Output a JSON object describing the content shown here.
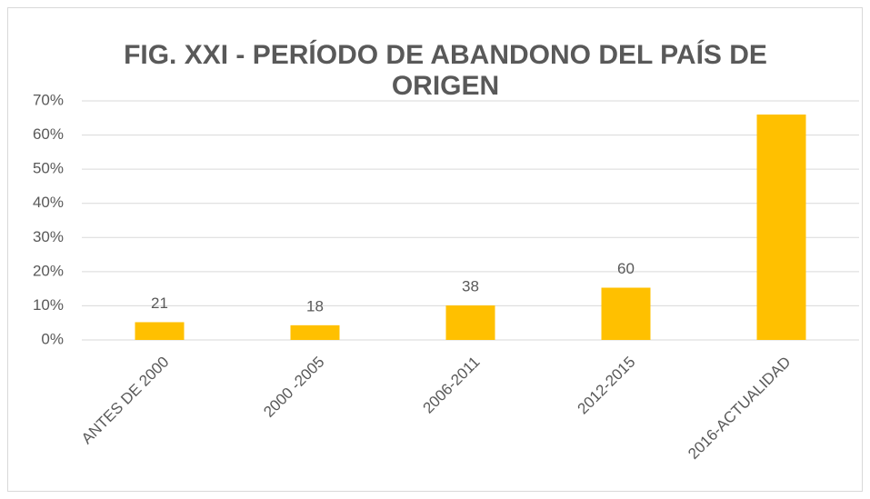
{
  "chart_data": {
    "type": "bar",
    "title": "FIG. XXI - PERÍODO DE ABANDONO DEL PAÍS DE ORIGEN",
    "categories": [
      "ANTES DE 2000",
      "2000 -2005",
      "2006-2011",
      "2012-2015",
      "2016-ACTUALIDAD"
    ],
    "values": [
      5.2,
      4.3,
      10.1,
      15.3,
      66.0
    ],
    "data_labels": [
      21,
      18,
      38,
      60,
      null
    ],
    "color": "#ffc000",
    "ylim": [
      0,
      70
    ],
    "yticks": [
      {
        "value": 0,
        "label": "0%"
      },
      {
        "value": 10,
        "label": "10%"
      },
      {
        "value": 20,
        "label": "20%"
      },
      {
        "value": 30,
        "label": "30%"
      },
      {
        "value": 40,
        "label": "40%"
      },
      {
        "value": 50,
        "label": "50%"
      },
      {
        "value": 60,
        "label": "60%"
      },
      {
        "value": 70,
        "label": "70%"
      }
    ],
    "grid": true
  }
}
